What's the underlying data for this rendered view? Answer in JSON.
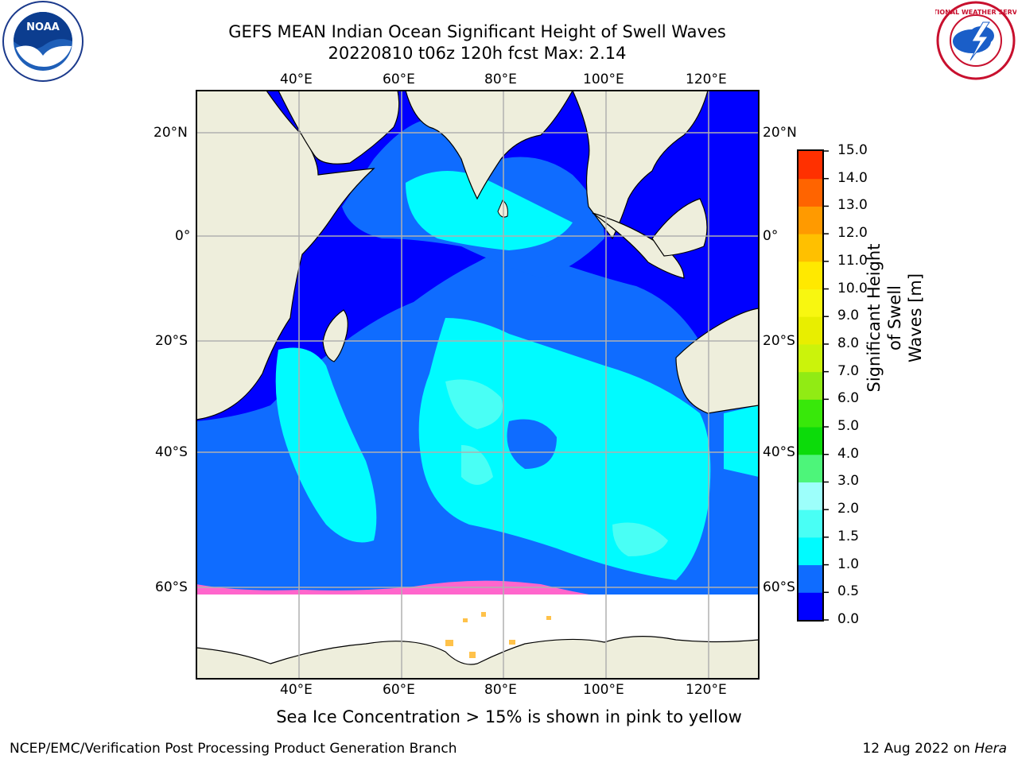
{
  "title": {
    "line1": "GEFS MEAN Indian Ocean Significant Height of Swell Waves",
    "line2": "20220810 t06z 120h fcst   Max: 2.14"
  },
  "map": {
    "lon_labels": [
      "40°E",
      "60°E",
      "80°E",
      "100°E",
      "120°E"
    ],
    "lat_labels": [
      "20°N",
      "0°",
      "20°S",
      "40°S",
      "60°S"
    ],
    "extent": {
      "lon_min": 20,
      "lon_max": 130,
      "lat_min": -70,
      "lat_max": 28
    },
    "colors": {
      "land": "#eeeedc",
      "sea_ice": "#ffffff",
      "grid": "#b0b0b0"
    }
  },
  "colorbar": {
    "title_line1": "Significant Height of Swell",
    "title_line2": "Waves [m]",
    "tick_labels": [
      "0.0",
      "0.5",
      "1.0",
      "1.5",
      "2.0",
      "3.0",
      "4.0",
      "5.0",
      "6.0",
      "7.0",
      "8.0",
      "9.0",
      "10.0",
      "11.0",
      "12.0",
      "13.0",
      "14.0",
      "15.0"
    ],
    "colors": [
      "#0000ff",
      "#0f6cff",
      "#00fbff",
      "#49fff5",
      "#9dfffb",
      "#4df57a",
      "#0cdb0a",
      "#38e80a",
      "#91eb14",
      "#cbf30b",
      "#e8ee00",
      "#f8f710",
      "#ffe900",
      "#ffc000",
      "#ff9a00",
      "#ff6400",
      "#ff3000",
      "#ff0000"
    ]
  },
  "sea_ice_note": "Sea Ice Concentration > 15% is shown in pink to yellow",
  "footer": {
    "left": "NCEP/EMC/Verification Post Processing Product Generation Branch",
    "right_date": "12 Aug 2022 on",
    "right_machine": "Hera"
  },
  "logos": {
    "noaa_text": "NOAA",
    "nws_text": "NATIONAL WEATHER SERVICE"
  }
}
